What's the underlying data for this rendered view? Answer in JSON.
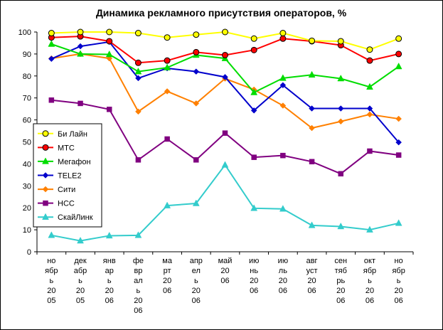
{
  "chart_data": {
    "type": "line",
    "title": "Динамика рекламного присутствия операторов, %",
    "xlabel": "",
    "ylabel": "",
    "ylim": [
      0,
      100
    ],
    "yticks": [
      0,
      10,
      20,
      30,
      40,
      50,
      60,
      70,
      80,
      90,
      100
    ],
    "grid": false,
    "legend_position": "left-center",
    "categories": [
      [
        "но",
        "ябр",
        "ь",
        "20",
        "05"
      ],
      [
        "дек",
        "абр",
        "ь",
        "20",
        "05"
      ],
      [
        "янв",
        "ар",
        "ь",
        "20",
        "06"
      ],
      [
        "фе",
        "вр",
        "ал",
        "ь",
        "20",
        "06"
      ],
      [
        "ма",
        "рт",
        "20",
        "06"
      ],
      [
        "апр",
        "ел",
        "ь",
        "20",
        "06"
      ],
      [
        "май",
        "20",
        "06"
      ],
      [
        "ию",
        "нь",
        "20",
        "06"
      ],
      [
        "ию",
        "ль",
        "20",
        "06"
      ],
      [
        "авг",
        "уст",
        "20",
        "06"
      ],
      [
        "сен",
        "тяб",
        "рь",
        "20",
        "06"
      ],
      [
        "окт",
        "ябр",
        "ь",
        "20",
        "06"
      ],
      [
        "но",
        "ябр",
        "ь",
        "20",
        "06"
      ]
    ],
    "series": [
      {
        "name": "Би Лайн",
        "color": "#ffff00",
        "stroke": "#000000",
        "marker": "circle",
        "values": [
          99.5,
          100,
          100,
          99.5,
          97.5,
          98.8,
          100,
          97,
          99.5,
          96,
          95.8,
          92,
          97
        ]
      },
      {
        "name": "МТС",
        "color": "#ff0000",
        "stroke": "#000000",
        "marker": "circle",
        "values": [
          97.5,
          98,
          95.8,
          86,
          87,
          90.8,
          89.5,
          91.8,
          97,
          95.8,
          94,
          87,
          90
        ]
      },
      {
        "name": "Мегафон",
        "color": "#00dd00",
        "stroke": "#00dd00",
        "marker": "triangle",
        "values": [
          94.5,
          90,
          89.8,
          82,
          83.8,
          89.5,
          88,
          72.5,
          79,
          80.5,
          78.8,
          75,
          84.3
        ]
      },
      {
        "name": "TELE2",
        "color": "#0000cc",
        "stroke": "#0000cc",
        "marker": "diamond",
        "values": [
          87.8,
          93.5,
          95.5,
          79,
          83.5,
          82,
          79.5,
          64.3,
          75.8,
          65.2,
          65.2,
          65.2,
          49.8
        ]
      },
      {
        "name": "Сити",
        "color": "#ff8000",
        "stroke": "#ff8000",
        "marker": "diamond",
        "values": [
          88,
          90,
          88,
          63.8,
          73,
          67.5,
          78.8,
          73.8,
          66.5,
          56.3,
          59.3,
          62.5,
          60.5
        ]
      },
      {
        "name": "НСС",
        "color": "#800080",
        "stroke": "#800080",
        "marker": "square",
        "values": [
          69,
          67.5,
          64.8,
          41.8,
          51.3,
          41.8,
          54,
          43,
          43.8,
          41,
          35.5,
          45.8,
          44
        ]
      },
      {
        "name": "СкайЛинк",
        "color": "#33cccc",
        "stroke": "#33cccc",
        "marker": "triangle",
        "values": [
          7.5,
          5,
          7.3,
          7.5,
          21,
          22,
          39.5,
          19.8,
          19.5,
          12,
          11.5,
          10,
          13
        ]
      }
    ]
  }
}
